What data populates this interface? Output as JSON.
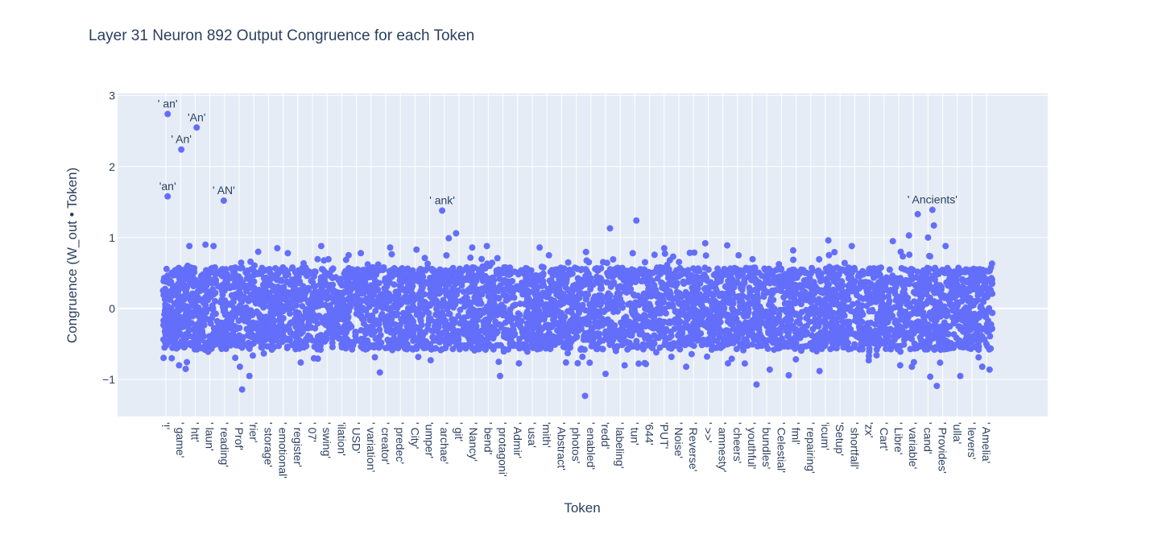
{
  "chart_data": {
    "type": "scatter",
    "title": "Layer 31 Neuron 892 Output Congruence for each Token",
    "xlabel": "Token",
    "ylabel": "Congruence (W_out • Token)",
    "ylim": [
      -1.52,
      3.03
    ],
    "y_ticks": [
      -1,
      0,
      1,
      2,
      3
    ],
    "y_tick_labels": [
      "−1",
      "0",
      "1",
      "2",
      "3"
    ],
    "grid": true,
    "colors": {
      "marker": "#636efa",
      "plot_bg": "#e5ecf6",
      "grid": "#ffffff",
      "text": "#2a3f5f"
    },
    "x_categories": [
      "'!'",
      "' game'",
      "' htt'",
      "' laun'",
      "' reading'",
      "' Prof'",
      "'rier'",
      "' storage'",
      "' emotional'",
      "' register'",
      "' 07'",
      "' swing'",
      "'ilation'",
      "' USD'",
      "' variation'",
      "' creator'",
      "' predec'",
      "' City'",
      "'umper'",
      "' archae'",
      "' git'",
      "' Nancy'",
      "' bend'",
      "' protagoni'",
      "' Admir'",
      "' usa'",
      "'mith'",
      "' Abstract'",
      "' photos'",
      "' enabled'",
      "'redd'",
      "' labeling'",
      "' tun'",
      "'644'",
      "'PUT'",
      "' Noise'",
      "' Reverse'",
      "' >>'",
      "' amnesty'",
      "' cheers'",
      "' youthful'",
      "' bundles'",
      "' Celestial'",
      "' fml'",
      "' repairing'",
      "'icum'",
      "'Setup'",
      "' shortfall'",
      "'zx'",
      "' Cart'",
      "' Libre'",
      "' variable'",
      "' cand'",
      "' Provides'",
      "'ulla'",
      "' levers'",
      "' Amelia'"
    ],
    "annotated_points": [
      {
        "label": "' an'",
        "x": 0.12,
        "y": 2.74
      },
      {
        "label": "'An'",
        "x": 2.1,
        "y": 2.55
      },
      {
        "label": "' An'",
        "x": 1.05,
        "y": 2.24
      },
      {
        "label": "'an'",
        "x": 0.12,
        "y": 1.58
      },
      {
        "label": "' AN'",
        "x": 3.95,
        "y": 1.52
      },
      {
        "label": "' ank'",
        "x": 18.85,
        "y": 1.38
      },
      {
        "label": "' Ancients'",
        "x": 52.3,
        "y": 1.39
      }
    ],
    "outlier_points": [
      {
        "x": 0.4,
        "y": -0.7
      },
      {
        "x": 0.9,
        "y": -0.8
      },
      {
        "x": 1.35,
        "y": -0.85
      },
      {
        "x": 1.6,
        "y": 0.88
      },
      {
        "x": 2.7,
        "y": 0.9
      },
      {
        "x": 3.25,
        "y": 0.88
      },
      {
        "x": 5.05,
        "y": -0.82
      },
      {
        "x": 5.2,
        "y": -1.14
      },
      {
        "x": 5.7,
        "y": -0.95
      },
      {
        "x": 6.3,
        "y": 0.8
      },
      {
        "x": 7.6,
        "y": 0.85
      },
      {
        "x": 9.2,
        "y": -0.76
      },
      {
        "x": 10.6,
        "y": 0.88
      },
      {
        "x": 13.3,
        "y": 0.78
      },
      {
        "x": 14.6,
        "y": -0.9
      },
      {
        "x": 15.3,
        "y": 0.86
      },
      {
        "x": 17.1,
        "y": 0.83
      },
      {
        "x": 19.3,
        "y": 0.99
      },
      {
        "x": 19.8,
        "y": 1.06
      },
      {
        "x": 20.9,
        "y": 0.86
      },
      {
        "x": 21.9,
        "y": 0.88
      },
      {
        "x": 22.8,
        "y": -0.95
      },
      {
        "x": 25.5,
        "y": 0.86
      },
      {
        "x": 27.3,
        "y": -0.76
      },
      {
        "x": 28.1,
        "y": -0.77
      },
      {
        "x": 28.6,
        "y": -1.23
      },
      {
        "x": 30.0,
        "y": -0.92
      },
      {
        "x": 30.3,
        "y": 1.13
      },
      {
        "x": 31.3,
        "y": -0.8
      },
      {
        "x": 32.1,
        "y": 1.24
      },
      {
        "x": 34.0,
        "y": 0.85
      },
      {
        "x": 35.5,
        "y": -0.82
      },
      {
        "x": 36.8,
        "y": 0.92
      },
      {
        "x": 38.3,
        "y": 0.89
      },
      {
        "x": 40.3,
        "y": -1.07
      },
      {
        "x": 41.2,
        "y": -0.86
      },
      {
        "x": 42.5,
        "y": -0.94
      },
      {
        "x": 42.8,
        "y": 0.82
      },
      {
        "x": 44.6,
        "y": -0.88
      },
      {
        "x": 45.2,
        "y": 0.96
      },
      {
        "x": 46.8,
        "y": 0.88
      },
      {
        "x": 49.6,
        "y": 0.95
      },
      {
        "x": 50.1,
        "y": -0.8
      },
      {
        "x": 50.7,
        "y": 1.03
      },
      {
        "x": 50.9,
        "y": -0.82
      },
      {
        "x": 51.3,
        "y": 1.33
      },
      {
        "x": 52.0,
        "y": 1.0
      },
      {
        "x": 52.15,
        "y": -0.96
      },
      {
        "x": 52.4,
        "y": 1.17
      },
      {
        "x": 52.6,
        "y": -1.09
      },
      {
        "x": 53.2,
        "y": 0.88
      },
      {
        "x": 54.2,
        "y": -0.95
      },
      {
        "x": 55.7,
        "y": -0.82
      },
      {
        "x": 56.2,
        "y": -0.86
      }
    ],
    "bulk": {
      "x_range": [
        -0.2,
        56.4
      ],
      "y_range": [
        -0.58,
        0.58
      ],
      "tail_range": [
        -0.8,
        0.8
      ]
    }
  }
}
